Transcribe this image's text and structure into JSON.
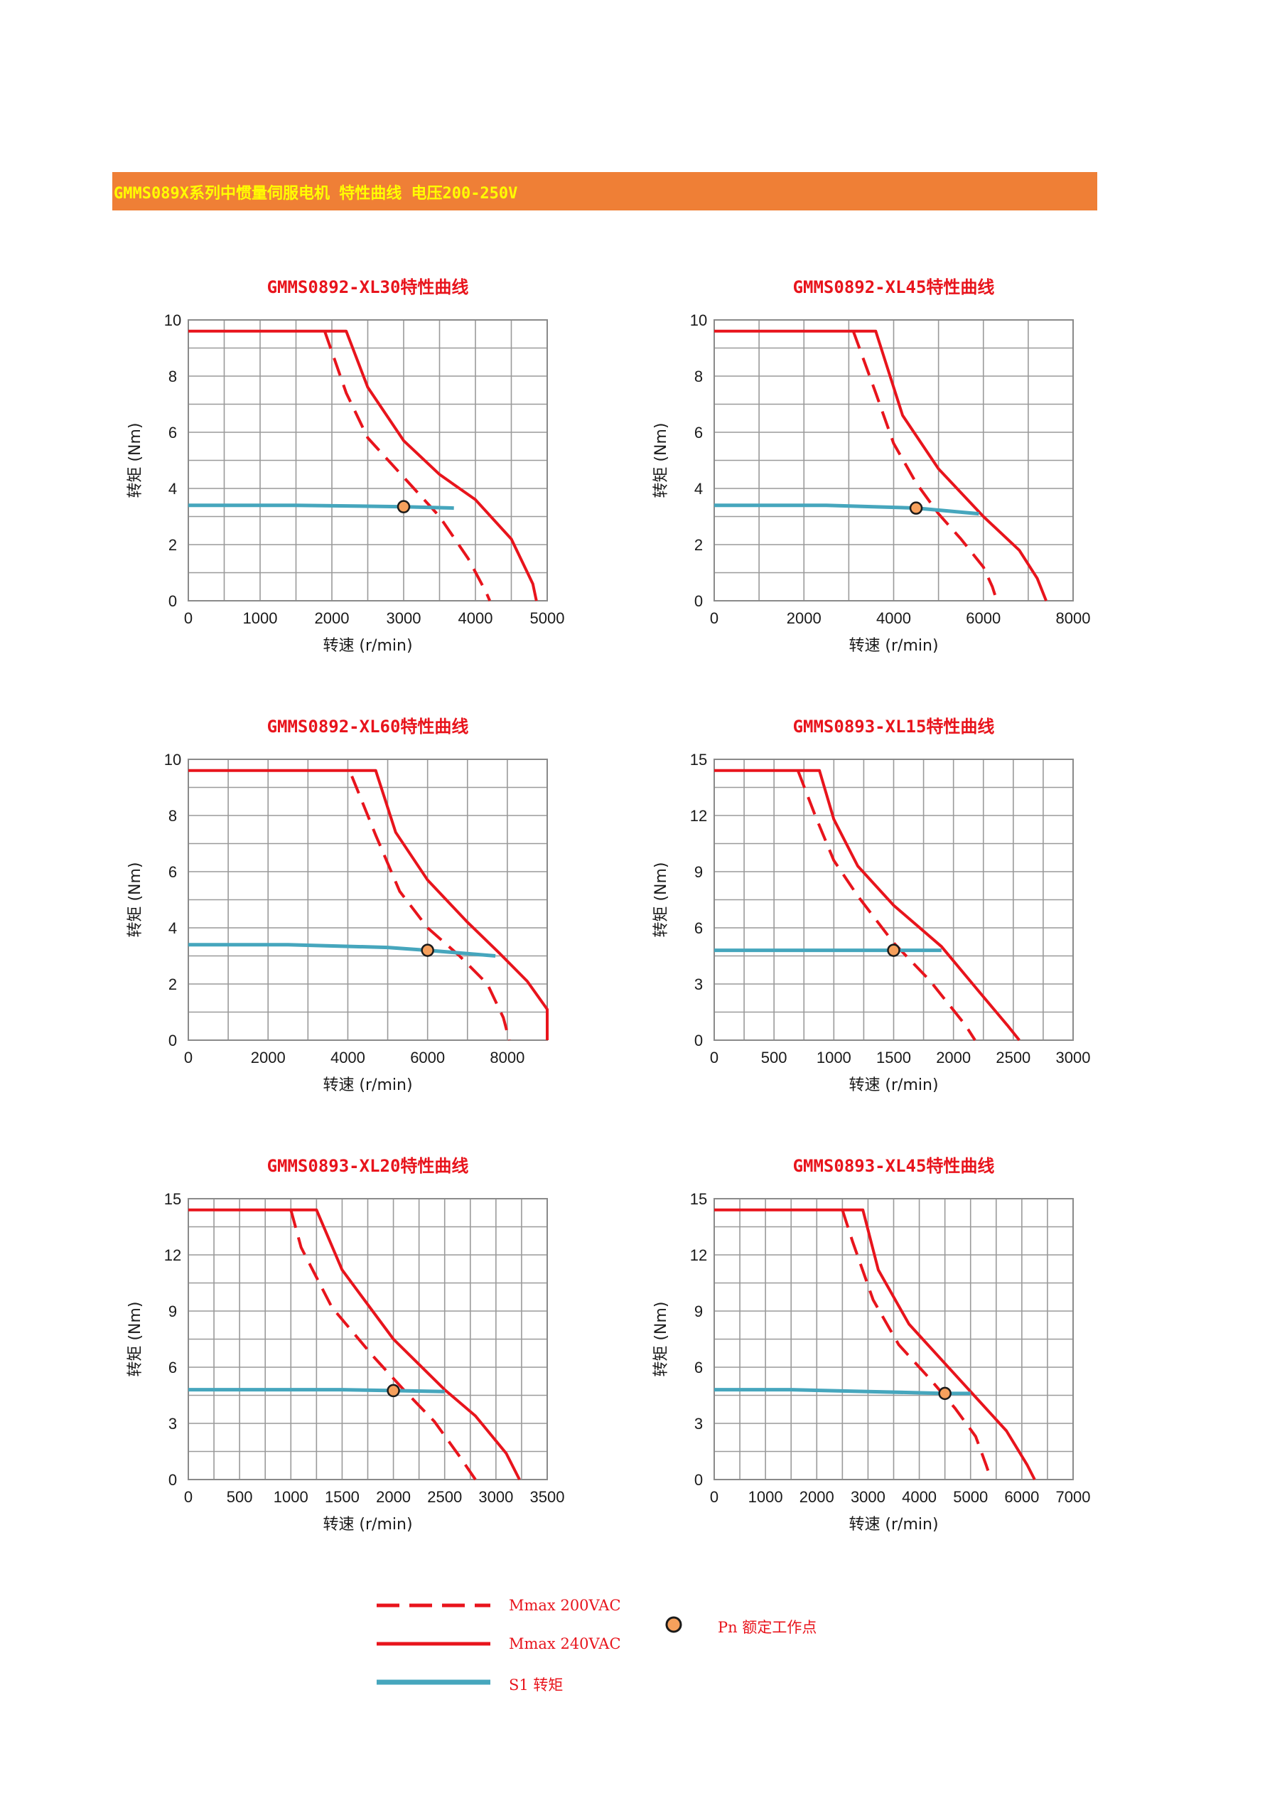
{
  "header": {
    "title": "GMMS089X系列中惯量伺服电机 特性曲线 电压200-250V"
  },
  "colors": {
    "banner": "#ef7f36",
    "banner_text": "#ffff00",
    "mmax": "#e8141c",
    "s1": "#46a6bd",
    "pn_fill": "#f6a05c",
    "grid": "#9a9a9a"
  },
  "legend": {
    "mmax200": "Mmax 200VAC",
    "mmax240": "Mmax 240VAC",
    "s1": "S1 转矩",
    "pn": "Pn 额定工作点"
  },
  "chart_data": [
    {
      "type": "line",
      "title": "GMMS0892-XL30特性曲线",
      "xlabel": "转速 (r/min)",
      "ylabel": "转矩 (Nm)",
      "xlim": [
        0,
        5000
      ],
      "ylim": [
        0,
        10
      ],
      "xticks": [
        0,
        1000,
        2000,
        3000,
        4000,
        5000
      ],
      "yticks": [
        0,
        2,
        4,
        6,
        8,
        10
      ],
      "grid": true,
      "series": [
        {
          "name": "Mmax 240VAC",
          "style": "solid",
          "x": [
            0,
            2200,
            2500,
            3000,
            3500,
            4000,
            4500,
            4800,
            4850
          ],
          "y": [
            9.6,
            9.6,
            7.6,
            5.7,
            4.5,
            3.6,
            2.2,
            0.6,
            0
          ]
        },
        {
          "name": "Mmax 200VAC",
          "style": "dashed",
          "x": [
            1900,
            2200,
            2500,
            3000,
            3500,
            3900,
            4150,
            4200
          ],
          "y": [
            9.6,
            7.4,
            5.8,
            4.4,
            3.0,
            1.5,
            0.3,
            0
          ]
        },
        {
          "name": "S1 转矩",
          "style": "solid",
          "x": [
            0,
            1500,
            3000,
            3700
          ],
          "y": [
            3.4,
            3.4,
            3.35,
            3.3
          ]
        }
      ],
      "points": [
        {
          "name": "Pn 额定工作点",
          "x": 3000,
          "y": 3.35
        }
      ]
    },
    {
      "type": "line",
      "title": "GMMS0892-XL45特性曲线",
      "xlabel": "转速 (r/min)",
      "ylabel": "转矩 (Nm)",
      "xlim": [
        0,
        8000
      ],
      "ylim": [
        0,
        10
      ],
      "xticks": [
        0,
        2000,
        4000,
        6000,
        8000
      ],
      "yticks": [
        0,
        2,
        4,
        6,
        8,
        10
      ],
      "grid": true,
      "series": [
        {
          "name": "Mmax 240VAC",
          "style": "solid",
          "x": [
            0,
            3600,
            4200,
            5000,
            6000,
            6800,
            7200,
            7400
          ],
          "y": [
            9.6,
            9.6,
            6.6,
            4.7,
            3.0,
            1.8,
            0.8,
            0
          ]
        },
        {
          "name": "Mmax 200VAC",
          "style": "dashed",
          "x": [
            3100,
            3600,
            4000,
            4500,
            5000,
            5500,
            6000,
            6200,
            6300
          ],
          "y": [
            9.6,
            7.4,
            5.6,
            4.2,
            3.1,
            2.2,
            1.2,
            0.5,
            0
          ]
        },
        {
          "name": "S1 转矩",
          "style": "solid",
          "x": [
            0,
            2500,
            4500,
            5900
          ],
          "y": [
            3.4,
            3.4,
            3.3,
            3.1
          ]
        }
      ],
      "points": [
        {
          "name": "Pn 额定工作点",
          "x": 4500,
          "y": 3.3
        }
      ]
    },
    {
      "type": "line",
      "title": "GMMS0892-XL60特性曲线",
      "xlabel": "转速 (r/min)",
      "ylabel": "转矩 (Nm)",
      "xlim": [
        0,
        9000
      ],
      "ylim": [
        0,
        10
      ],
      "xticks": [
        0,
        2000,
        4000,
        6000,
        8000
      ],
      "yticks": [
        0,
        2,
        4,
        6,
        8,
        10
      ],
      "grid": true,
      "series": [
        {
          "name": "Mmax 240VAC",
          "style": "solid",
          "x": [
            0,
            4700,
            5200,
            6000,
            7000,
            7800,
            8500,
            9000,
            9000
          ],
          "y": [
            9.6,
            9.6,
            7.4,
            5.7,
            4.2,
            3.1,
            2.1,
            1.1,
            0
          ]
        },
        {
          "name": "Mmax 200VAC",
          "style": "dashed",
          "x": [
            4100,
            4700,
            5300,
            6000,
            6800,
            7500,
            7900,
            8050
          ],
          "y": [
            9.4,
            7.3,
            5.3,
            4.0,
            3.0,
            2.0,
            0.8,
            0
          ]
        },
        {
          "name": "S1 转矩",
          "style": "solid",
          "x": [
            0,
            2500,
            5000,
            6000,
            7700
          ],
          "y": [
            3.4,
            3.4,
            3.3,
            3.2,
            3.0
          ]
        }
      ],
      "points": [
        {
          "name": "Pn 额定工作点",
          "x": 6000,
          "y": 3.2
        }
      ]
    },
    {
      "type": "line",
      "title": "GMMS0893-XL15特性曲线",
      "xlabel": "转速 (r/min)",
      "ylabel": "转矩 (Nm)",
      "xlim": [
        0,
        3000
      ],
      "ylim": [
        0,
        15
      ],
      "xticks": [
        0,
        500,
        1000,
        1500,
        2000,
        2500,
        3000
      ],
      "yticks": [
        0,
        3,
        6,
        9,
        12,
        15
      ],
      "grid": true,
      "series": [
        {
          "name": "Mmax 240VAC",
          "style": "solid",
          "x": [
            0,
            880,
            1000,
            1200,
            1500,
            1900,
            2200,
            2450,
            2550
          ],
          "y": [
            14.4,
            14.4,
            11.8,
            9.3,
            7.2,
            5.0,
            2.7,
            0.8,
            0
          ]
        },
        {
          "name": "Mmax 200VAC",
          "style": "dashed",
          "x": [
            700,
            850,
            1000,
            1200,
            1500,
            1800,
            2100,
            2180
          ],
          "y": [
            14.4,
            11.9,
            9.6,
            7.7,
            5.2,
            3.2,
            0.8,
            0
          ]
        },
        {
          "name": "S1 转矩",
          "style": "solid",
          "x": [
            0,
            1000,
            1500,
            1900
          ],
          "y": [
            4.8,
            4.8,
            4.8,
            4.8
          ]
        }
      ],
      "points": [
        {
          "name": "Pn 额定工作点",
          "x": 1500,
          "y": 4.8
        }
      ]
    },
    {
      "type": "line",
      "title": "GMMS0893-XL20特性曲线",
      "xlabel": "转速 (r/min)",
      "ylabel": "转矩 (Nm)",
      "xlim": [
        0,
        3500
      ],
      "ylim": [
        0,
        15
      ],
      "xticks": [
        0,
        500,
        1000,
        1500,
        2000,
        2500,
        3000,
        3500
      ],
      "yticks": [
        0,
        3,
        6,
        9,
        12,
        15
      ],
      "grid": true,
      "series": [
        {
          "name": "Mmax 240VAC",
          "style": "solid",
          "x": [
            0,
            1250,
            1500,
            2000,
            2500,
            2800,
            3100,
            3230
          ],
          "y": [
            14.4,
            14.4,
            11.2,
            7.5,
            4.8,
            3.4,
            1.4,
            0
          ]
        },
        {
          "name": "Mmax 200VAC",
          "style": "dashed",
          "x": [
            1000,
            1100,
            1400,
            1800,
            2100,
            2400,
            2650,
            2800
          ],
          "y": [
            14.4,
            12.4,
            9.2,
            6.6,
            4.8,
            3.1,
            1.2,
            0
          ]
        },
        {
          "name": "S1 转矩",
          "style": "solid",
          "x": [
            0,
            1500,
            2000,
            2500
          ],
          "y": [
            4.8,
            4.8,
            4.75,
            4.7
          ]
        }
      ],
      "points": [
        {
          "name": "Pn 额定工作点",
          "x": 2000,
          "y": 4.75
        }
      ]
    },
    {
      "type": "line",
      "title": "GMMS0893-XL45特性曲线",
      "xlabel": "转速 (r/min)",
      "ylabel": "转矩 (Nm)",
      "xlim": [
        0,
        7000
      ],
      "ylim": [
        0,
        15
      ],
      "xticks": [
        0,
        1000,
        2000,
        3000,
        4000,
        5000,
        6000,
        7000
      ],
      "yticks": [
        0,
        3,
        6,
        9,
        12,
        15
      ],
      "grid": true,
      "series": [
        {
          "name": "Mmax 240VAC",
          "style": "solid",
          "x": [
            0,
            2900,
            3200,
            3800,
            4500,
            5100,
            5700,
            6100,
            6250
          ],
          "y": [
            14.4,
            14.4,
            11.2,
            8.3,
            6.2,
            4.4,
            2.6,
            0.8,
            0
          ]
        },
        {
          "name": "Mmax 200VAC",
          "style": "dashed",
          "x": [
            2500,
            2700,
            3100,
            3600,
            4200,
            4700,
            5100,
            5300,
            5400
          ],
          "y": [
            14.4,
            12.7,
            9.6,
            7.2,
            5.4,
            3.8,
            2.3,
            0.8,
            0
          ]
        },
        {
          "name": "S1 转矩",
          "style": "solid",
          "x": [
            0,
            1500,
            3000,
            4500,
            5000
          ],
          "y": [
            4.8,
            4.8,
            4.7,
            4.6,
            4.6
          ]
        }
      ],
      "points": [
        {
          "name": "Pn 额定工作点",
          "x": 4500,
          "y": 4.6
        }
      ]
    }
  ]
}
